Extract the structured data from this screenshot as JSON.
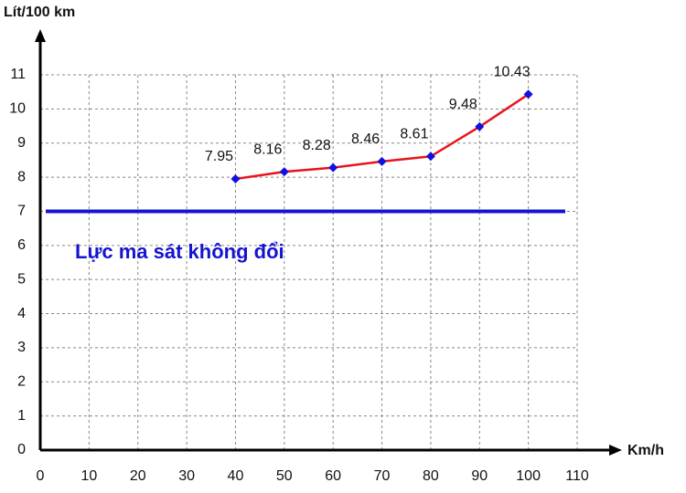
{
  "chart_data": {
    "type": "line",
    "y_label": "Lít/100 km",
    "x_label": "Km/h",
    "x": [
      40,
      50,
      60,
      70,
      80,
      90,
      100
    ],
    "series": [
      {
        "color": "#e8141c",
        "marker_color": "#1010e0",
        "values": [
          7.95,
          8.16,
          8.28,
          8.46,
          8.61,
          9.48,
          10.43
        ]
      }
    ],
    "reference_line": {
      "value": 7,
      "label": "Lực ma sát không đổi",
      "color": "#1414d0"
    },
    "xlim": [
      0,
      110
    ],
    "xticks": [
      0,
      10,
      20,
      30,
      40,
      50,
      60,
      70,
      80,
      90,
      100,
      110
    ],
    "ylim": [
      0,
      11
    ],
    "yticks": [
      0,
      1,
      2,
      3,
      4,
      5,
      6,
      7,
      8,
      9,
      10,
      11
    ],
    "grid": true
  }
}
